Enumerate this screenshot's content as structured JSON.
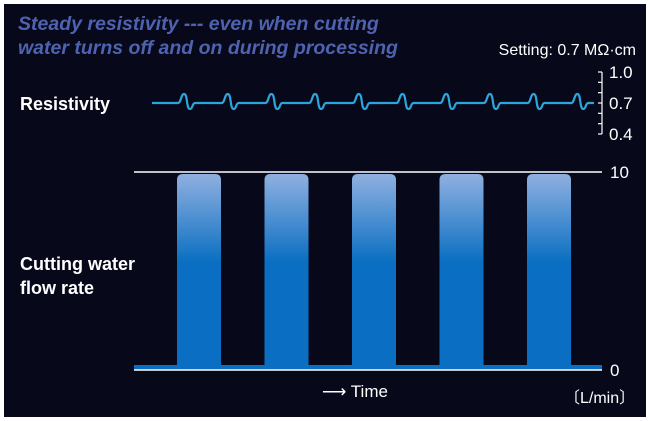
{
  "title_lines": [
    "Steady resistivity --- even when cutting",
    "water turns off and on during processing"
  ],
  "setting_label": "Setting: 0.7 MΩ·cm",
  "resistivity_label": "Resistivity",
  "flow_label_lines": [
    "Cutting water",
    "flow rate"
  ],
  "time_label": "Time",
  "unit_label": "〔L/min〕",
  "colors": {
    "background": "#07081a",
    "title": "#4e63b0",
    "resistivity_line": "#2aa6dc",
    "bar_top": "#8fb0e0",
    "bar_bottom": "#0a6fc2",
    "axis": "#ffffff"
  },
  "chart_data": [
    {
      "type": "line",
      "name": "Resistivity",
      "ylim": [
        0.4,
        1.0
      ],
      "yticks": [
        "1.0",
        "0.7",
        "0.4"
      ],
      "setting": 0.7,
      "values_description_free": true,
      "pulses": 10
    },
    {
      "type": "area",
      "name": "Cutting water flow rate",
      "xlabel": "Time",
      "ylabel": "〔L/min〕",
      "ylim": [
        0,
        10
      ],
      "yticks": [
        "10",
        "0"
      ],
      "on_value": 10,
      "off_value": 0,
      "cycles": 5
    }
  ]
}
